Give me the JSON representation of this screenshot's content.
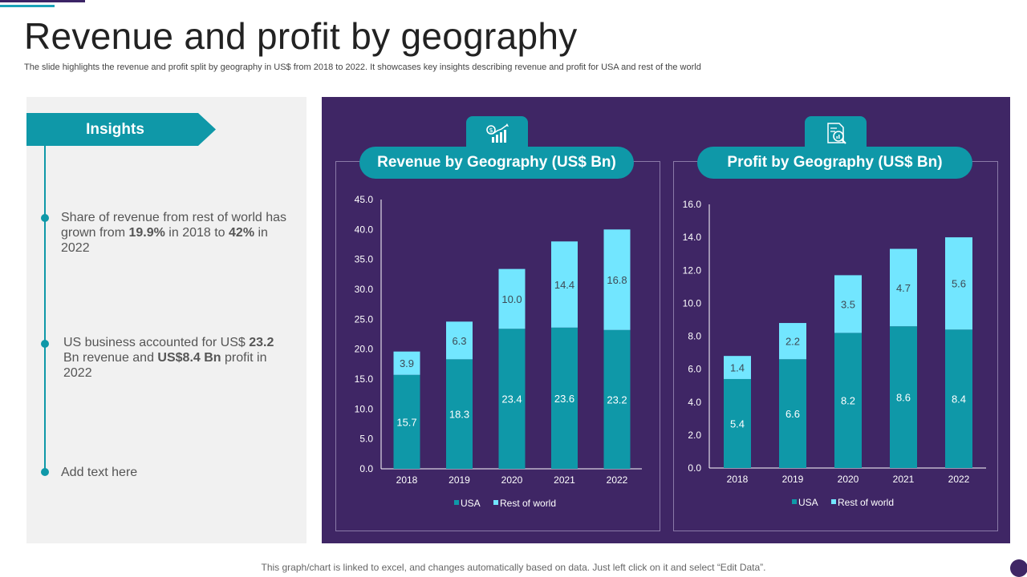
{
  "slide": {
    "title": "Revenue and profit by geography",
    "subtitle": "The slide highlights the revenue and profit split by geography in US$ from 2018 to 2022. It showcases key insights describing revenue and profit for USA and rest of the world",
    "footer": "This graph/chart is linked to excel,  and changes automatically based on data. Just left click on it and select “Edit Data”."
  },
  "insights": {
    "heading": "Insights",
    "items": [
      {
        "pre": "Share of revenue  from rest of world has grown from ",
        "b1": "19.9%",
        "mid": " in 2018 to ",
        "b2": "42%",
        "post": " in 2022"
      },
      {
        "pre": "US business accounted for US$ ",
        "b1": "23.2",
        "mid": " Bn revenue  and ",
        "b2": "US$8.4 Bn",
        "post": " profit in 2022"
      },
      {
        "text": "Add text here"
      }
    ]
  },
  "colors": {
    "usa": "#0f98a8",
    "rest": "#72e6ff",
    "panel": "#3f2665",
    "axis": "#ffffff"
  },
  "icons": [
    "revenue-chart-icon",
    "profit-analysis-icon"
  ],
  "chart_data": [
    {
      "type": "bar",
      "stacked": true,
      "title": "Revenue by Geography (US$ Bn)",
      "categories": [
        "2018",
        "2019",
        "2020",
        "2021",
        "2022"
      ],
      "series": [
        {
          "name": "USA",
          "values": [
            15.7,
            18.3,
            23.4,
            23.6,
            23.2
          ]
        },
        {
          "name": "Rest of world",
          "values": [
            3.9,
            6.3,
            10.0,
            14.4,
            16.8
          ]
        }
      ],
      "ylim": [
        0,
        45
      ],
      "yticks": [
        "0.0",
        "5.0",
        "10.0",
        "15.0",
        "20.0",
        "25.0",
        "30.0",
        "35.0",
        "40.0",
        "45.0"
      ],
      "value_labels": [
        [
          "15.7",
          "18.3",
          "23.4",
          "23.6",
          "23.2"
        ],
        [
          "3.9",
          "6.3",
          "10.0",
          "14.4",
          "16.8"
        ]
      ],
      "legend": "bottom"
    },
    {
      "type": "bar",
      "stacked": true,
      "title": "Profit by Geography (US$ Bn)",
      "categories": [
        "2018",
        "2019",
        "2020",
        "2021",
        "2022"
      ],
      "series": [
        {
          "name": "USA",
          "values": [
            5.4,
            6.6,
            8.2,
            8.6,
            8.4
          ]
        },
        {
          "name": "Rest of world",
          "values": [
            1.4,
            2.2,
            3.5,
            4.7,
            5.6
          ]
        }
      ],
      "ylim": [
        0,
        16
      ],
      "yticks": [
        "0.0",
        "2.0",
        "4.0",
        "6.0",
        "8.0",
        "10.0",
        "12.0",
        "14.0",
        "16.0"
      ],
      "value_labels": [
        [
          "5.4",
          "6.6",
          "8.2",
          "8.6",
          "8.4"
        ],
        [
          "1.4",
          "2.2",
          "3.5",
          "4.7",
          "5.6"
        ]
      ],
      "legend": "bottom"
    }
  ]
}
